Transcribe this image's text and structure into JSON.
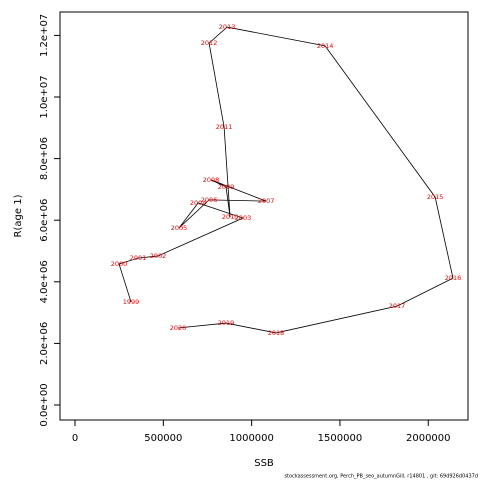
{
  "chart_data": {
    "type": "line",
    "xlabel": "SSB",
    "ylabel": "R(age 1)",
    "x": [
      317000,
      249000,
      357000,
      470000,
      951000,
      697000,
      589000,
      759000,
      1082000,
      770000,
      855000,
      878000,
      844000,
      759000,
      861000,
      1416000,
      2039000,
      2140000,
      1823000,
      1138000,
      855000,
      583000
    ],
    "y": [
      3350000,
      4580000,
      4770000,
      4840000,
      6070000,
      6560000,
      5750000,
      6660000,
      6620000,
      7310000,
      7080000,
      6100000,
      9030000,
      11750000,
      12270000,
      11660000,
      6750000,
      4120000,
      3210000,
      2340000,
      2660000,
      2500000
    ],
    "point_labels": [
      "1999",
      "2000",
      "2001",
      "2002",
      "2003",
      "2004",
      "2005",
      "2006",
      "2007",
      "2008",
      "2009",
      "2010",
      "2011",
      "2012",
      "2013",
      "2014",
      "2015",
      "2016",
      "2017",
      "2018",
      "2019",
      "2020"
    ],
    "line_color": "#000000",
    "label_color": "#ff0000",
    "xlim": [
      -85000,
      2225000
    ],
    "ylim": [
      -487000,
      12760000
    ],
    "xticks": [
      0,
      500000,
      1000000,
      1500000,
      2000000
    ],
    "yticks": [
      {
        "value": 0,
        "label": "0.0e+00"
      },
      {
        "value": 2000000,
        "label": "2.0e+06"
      },
      {
        "value": 4000000,
        "label": "4.0e+06"
      },
      {
        "value": 6000000,
        "label": "6.0e+06"
      },
      {
        "value": 8000000,
        "label": "8.0e+06"
      },
      {
        "value": 10000000,
        "label": "1.0e+07"
      },
      {
        "value": 12000000,
        "label": "1.2e+07"
      }
    ]
  },
  "footer": "stockassessment.org, Perch_PB_seo_autumnGill, r14801 , git: 69d926d0437d"
}
